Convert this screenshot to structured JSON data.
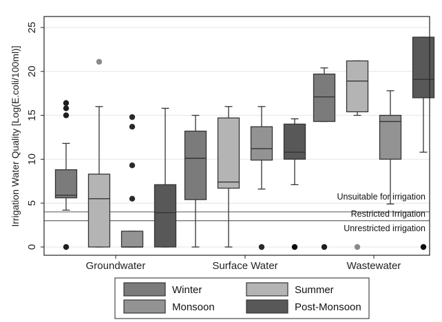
{
  "chart_data": {
    "type": "box",
    "ylabel": "Irrigation Water Quality [Log(E.coli/100ml)]",
    "ylim": [
      0,
      26
    ],
    "yticks": [
      0,
      5,
      10,
      15,
      20,
      25
    ],
    "grid": true,
    "categories": [
      "Groundwater",
      "Surface Water",
      "Wastewater"
    ],
    "series": [
      {
        "name": "Winter",
        "color": "#7b7b7b",
        "boxes": [
          {
            "whislo": 4.2,
            "q1": 5.6,
            "med": 5.9,
            "q3": 8.8,
            "whishi": 11.8,
            "fliers": [
              0,
              15.0,
              15.8,
              16.4
            ]
          },
          {
            "whislo": 0,
            "q1": 5.4,
            "med": 10.1,
            "q3": 13.2,
            "whishi": 15.0,
            "fliers": []
          },
          {
            "whislo": 14.3,
            "q1": 14.3,
            "med": 17.1,
            "q3": 19.7,
            "whishi": 20.4,
            "fliers": [
              0
            ]
          }
        ]
      },
      {
        "name": "Summer",
        "color": "#b4b4b4",
        "boxes": [
          {
            "whislo": 0,
            "q1": 0,
            "med": 5.5,
            "q3": 8.3,
            "whishi": 16.0,
            "fliers": [
              21.1
            ]
          },
          {
            "whislo": 0,
            "q1": 6.7,
            "med": 7.4,
            "q3": 14.7,
            "whishi": 16.0,
            "fliers": []
          },
          {
            "whislo": 15.0,
            "q1": 15.4,
            "med": 18.9,
            "q3": 21.2,
            "whishi": 21.2,
            "fliers": [
              0
            ]
          }
        ]
      },
      {
        "name": "Monsoon",
        "color": "#939393",
        "boxes": [
          {
            "whislo": 0,
            "q1": 0,
            "med": 0,
            "q3": 1.8,
            "whishi": 1.8,
            "fliers": [
              5.5,
              9.3,
              13.7,
              14.8
            ]
          },
          {
            "whislo": 6.6,
            "q1": 9.9,
            "med": 11.2,
            "q3": 13.7,
            "whishi": 16.0,
            "fliers": [
              0
            ]
          },
          {
            "whislo": 4.9,
            "q1": 10.0,
            "med": 14.3,
            "q3": 15.0,
            "whishi": 17.8,
            "fliers": []
          }
        ]
      },
      {
        "name": "Post-Monsoon",
        "color": "#585858",
        "boxes": [
          {
            "whislo": 0,
            "q1": 0,
            "med": 3.9,
            "q3": 7.1,
            "whishi": 15.8,
            "fliers": []
          },
          {
            "whislo": 7.1,
            "q1": 10.0,
            "med": 10.8,
            "q3": 14.0,
            "whishi": 14.6,
            "fliers": [
              0
            ]
          },
          {
            "whislo": 10.8,
            "q1": 17.0,
            "med": 19.1,
            "q3": 23.9,
            "whishi": 23.9,
            "fliers": [
              0
            ]
          }
        ]
      }
    ],
    "reference_lines": [
      {
        "value": 4.0,
        "label": "Unsuitable for irrigation"
      },
      {
        "value": 3.0,
        "label": "Restricted Irrigation"
      },
      {
        "value": 0,
        "label": "Unrestricted irrigation"
      }
    ],
    "legend": {
      "placement": "bottom",
      "columns": 2
    }
  }
}
